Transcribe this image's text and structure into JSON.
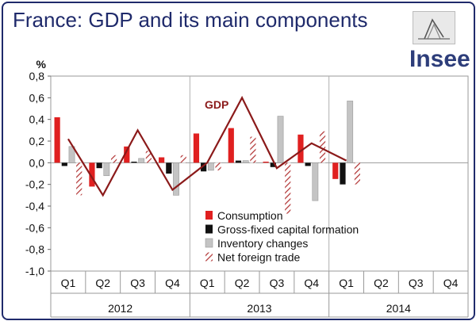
{
  "header": {
    "title": "France: GDP and its main components",
    "logo_text": "Insee"
  },
  "colors": {
    "title": "#1f2a6b",
    "consumption": "#e02020",
    "gfcf": "#111111",
    "inventory": "#c4c4c4",
    "net_trade_hatch": "#b03030",
    "gdp_line": "#8b1a1a",
    "gdp_label": "#8b1a1a"
  },
  "chart_data": {
    "type": "bar",
    "title": "",
    "ylabel": "%",
    "ylim": [
      -1.0,
      0.8
    ],
    "y_ticks": [
      "0,8",
      "0,6",
      "0,4",
      "0,2",
      "0,0",
      "-0,2",
      "-0,4",
      "-0,6",
      "-0,8",
      "-1,0"
    ],
    "y_tick_values": [
      0.8,
      0.6,
      0.4,
      0.2,
      0.0,
      -0.2,
      -0.4,
      -0.6,
      -0.8,
      -1.0
    ],
    "categories": [
      "Q1",
      "Q2",
      "Q3",
      "Q4",
      "Q1",
      "Q2",
      "Q3",
      "Q4",
      "Q1",
      "Q2",
      "Q3",
      "Q4"
    ],
    "years": [
      "2012",
      "2013",
      "2014"
    ],
    "series": [
      {
        "name": "Consumption",
        "style": "solid-red",
        "values": [
          0.42,
          -0.22,
          0.15,
          0.05,
          0.27,
          0.32,
          0.01,
          0.26,
          -0.15,
          null,
          null,
          null
        ]
      },
      {
        "name": "Gross-fixed capital formation",
        "style": "solid-black",
        "values": [
          -0.03,
          -0.05,
          0.01,
          -0.1,
          -0.08,
          0.02,
          -0.04,
          -0.03,
          -0.2,
          null,
          null,
          null
        ]
      },
      {
        "name": "Inventory changes",
        "style": "solid-grey",
        "values": [
          0.15,
          -0.12,
          0.04,
          -0.3,
          -0.07,
          0.02,
          0.43,
          -0.35,
          0.57,
          null,
          null,
          null
        ]
      },
      {
        "name": "Net foreign trade",
        "style": "hatched",
        "values": [
          -0.3,
          0.07,
          0.11,
          0.07,
          -0.07,
          0.24,
          -0.47,
          0.29,
          -0.2,
          null,
          null,
          null
        ]
      },
      {
        "name": "GDP",
        "style": "line",
        "values": [
          0.22,
          -0.3,
          0.3,
          -0.25,
          0.0,
          0.6,
          -0.05,
          0.18,
          0.02,
          null,
          null,
          null
        ]
      }
    ],
    "gdp_label": "GDP",
    "legend_position": "bottom-right",
    "grid": "vertical"
  }
}
